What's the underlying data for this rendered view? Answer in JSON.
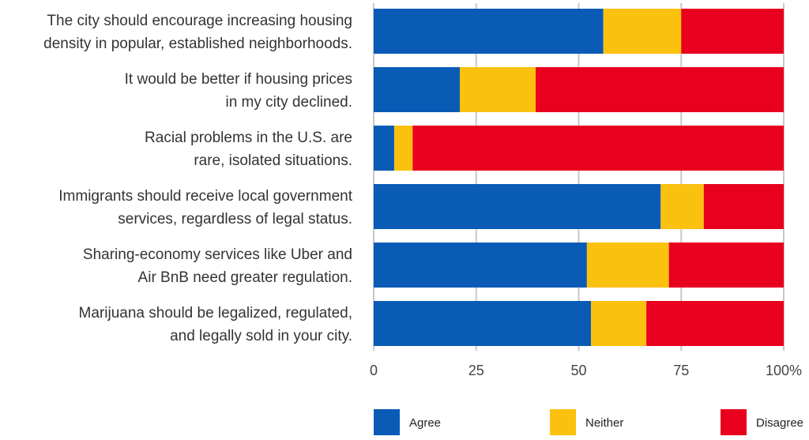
{
  "chart_data": {
    "type": "bar",
    "orientation": "horizontal",
    "stacked": true,
    "categories": [
      [
        "The city should encourage increasing housing",
        "density in popular, established neighborhoods."
      ],
      [
        "It would be better if housing prices",
        "in my city declined."
      ],
      [
        "Racial problems in the U.S. are",
        "rare, isolated situations."
      ],
      [
        "Immigrants should receive local government",
        "services, regardless of legal status."
      ],
      [
        "Sharing-economy services like Uber and",
        "Air BnB need greater regulation."
      ],
      [
        "Marijuana should be legalized, regulated,",
        "and legally sold in your city."
      ]
    ],
    "series": [
      {
        "name": "Agree",
        "color": "#0a5bb5",
        "values": [
          56,
          21,
          5,
          70,
          52,
          53
        ]
      },
      {
        "name": "Neither",
        "color": "#fbc10f",
        "values": [
          19,
          18.5,
          4.5,
          10.5,
          20,
          13.5
        ]
      },
      {
        "name": "Disagree",
        "color": "#e8001e",
        "values": [
          25,
          60.5,
          90.5,
          19.5,
          28,
          33.5
        ]
      }
    ],
    "xlim": [
      0,
      100
    ],
    "xticks": [
      "0",
      "25",
      "50",
      "75",
      "100%"
    ],
    "grid": true,
    "legend_position": "bottom"
  }
}
